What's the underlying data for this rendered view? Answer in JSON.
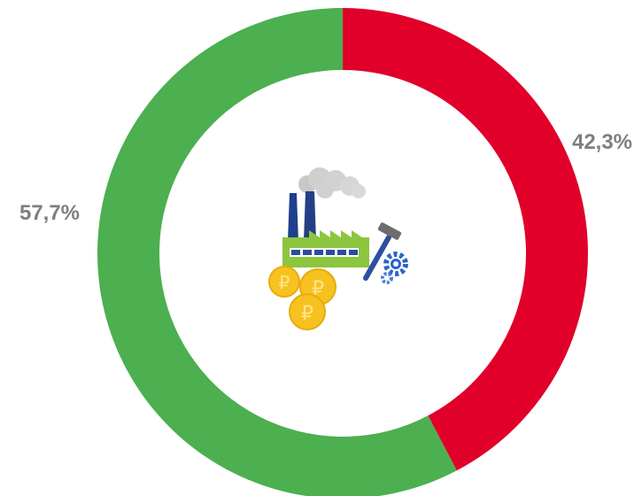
{
  "chart_data": {
    "type": "pie",
    "variant": "donut",
    "series": [
      {
        "label": "42,3%",
        "value": 42.3,
        "color": "#e0002a"
      },
      {
        "label": "57,7%",
        "value": 57.7,
        "color": "#4caf50"
      }
    ],
    "legend": "none",
    "center_icon": "factory-with-coins-and-tools-icon"
  }
}
